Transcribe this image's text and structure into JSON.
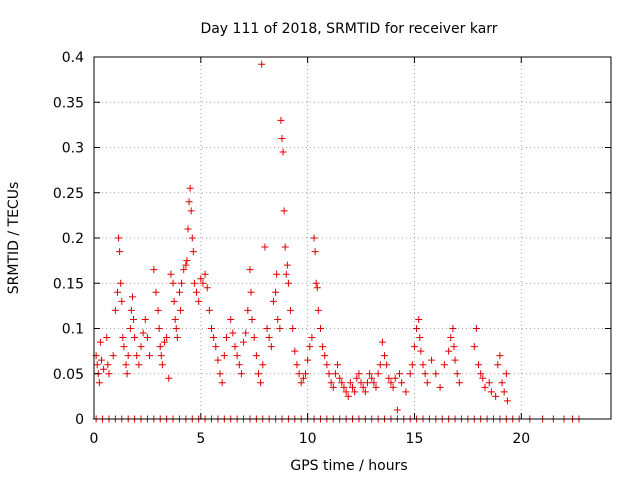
{
  "chart_data": {
    "type": "scatter",
    "title": "Day 111 of 2018, SRMTID for receiver karr",
    "xlabel": "GPS time / hours",
    "ylabel": "SRMTID / TECUs",
    "xlim": [
      0,
      24.2
    ],
    "ylim": [
      0,
      0.4
    ],
    "xticks": [
      0,
      5,
      10,
      15,
      20
    ],
    "xtick_labels": [
      "0",
      "5",
      "10",
      "15",
      "20"
    ],
    "yticks": [
      0,
      0.05,
      0.1,
      0.15,
      0.2,
      0.25,
      0.3,
      0.35,
      0.4
    ],
    "ytick_labels": [
      "0",
      "0.05",
      "0.1",
      "0.15",
      "0.2",
      "0.25",
      "0.3",
      "0.35",
      "0.4"
    ],
    "grid": true,
    "marker": "+",
    "marker_color": "#e00000",
    "series": [
      {
        "name": "SRMTID",
        "points": [
          [
            0.1,
            0.07
          ],
          [
            0.15,
            0.06
          ],
          [
            0.2,
            0.05
          ],
          [
            0.25,
            0.04
          ],
          [
            0.3,
            0.085
          ],
          [
            0.35,
            0.065
          ],
          [
            0.45,
            0.055
          ],
          [
            0.6,
            0.09
          ],
          [
            0.65,
            0.06
          ],
          [
            0.7,
            0.05
          ],
          [
            0.9,
            0.07
          ],
          [
            1.0,
            0.12
          ],
          [
            1.1,
            0.14
          ],
          [
            1.15,
            0.2
          ],
          [
            1.2,
            0.185
          ],
          [
            1.25,
            0.15
          ],
          [
            1.3,
            0.13
          ],
          [
            1.35,
            0.09
          ],
          [
            1.4,
            0.08
          ],
          [
            1.5,
            0.06
          ],
          [
            1.55,
            0.05
          ],
          [
            1.6,
            0.07
          ],
          [
            1.7,
            0.1
          ],
          [
            1.75,
            0.12
          ],
          [
            1.8,
            0.135
          ],
          [
            1.85,
            0.11
          ],
          [
            1.9,
            0.09
          ],
          [
            2.0,
            0.07
          ],
          [
            2.1,
            0.06
          ],
          [
            2.2,
            0.08
          ],
          [
            2.3,
            0.095
          ],
          [
            2.4,
            0.11
          ],
          [
            2.5,
            0.09
          ],
          [
            2.6,
            0.07
          ],
          [
            2.8,
            0.165
          ],
          [
            2.9,
            0.14
          ],
          [
            3.0,
            0.12
          ],
          [
            3.05,
            0.1
          ],
          [
            3.1,
            0.08
          ],
          [
            3.15,
            0.07
          ],
          [
            3.2,
            0.06
          ],
          [
            3.3,
            0.085
          ],
          [
            3.4,
            0.09
          ],
          [
            3.5,
            0.045
          ],
          [
            3.6,
            0.16
          ],
          [
            3.7,
            0.15
          ],
          [
            3.75,
            0.13
          ],
          [
            3.8,
            0.11
          ],
          [
            3.85,
            0.1
          ],
          [
            3.9,
            0.09
          ],
          [
            4.0,
            0.14
          ],
          [
            4.05,
            0.12
          ],
          [
            4.1,
            0.15
          ],
          [
            4.2,
            0.165
          ],
          [
            4.3,
            0.17
          ],
          [
            4.35,
            0.175
          ],
          [
            4.4,
            0.21
          ],
          [
            4.45,
            0.24
          ],
          [
            4.5,
            0.255
          ],
          [
            4.55,
            0.23
          ],
          [
            4.6,
            0.2
          ],
          [
            4.65,
            0.185
          ],
          [
            4.7,
            0.15
          ],
          [
            4.8,
            0.14
          ],
          [
            4.9,
            0.13
          ],
          [
            5.0,
            0.155
          ],
          [
            5.1,
            0.15
          ],
          [
            5.2,
            0.16
          ],
          [
            5.3,
            0.145
          ],
          [
            5.4,
            0.12
          ],
          [
            5.5,
            0.1
          ],
          [
            5.6,
            0.09
          ],
          [
            5.7,
            0.08
          ],
          [
            5.8,
            0.065
          ],
          [
            5.9,
            0.05
          ],
          [
            6.0,
            0.04
          ],
          [
            6.1,
            0.07
          ],
          [
            6.2,
            0.09
          ],
          [
            6.4,
            0.11
          ],
          [
            6.5,
            0.095
          ],
          [
            6.6,
            0.08
          ],
          [
            6.7,
            0.07
          ],
          [
            6.8,
            0.06
          ],
          [
            6.9,
            0.05
          ],
          [
            7.0,
            0.085
          ],
          [
            7.1,
            0.095
          ],
          [
            7.2,
            0.12
          ],
          [
            7.3,
            0.165
          ],
          [
            7.35,
            0.14
          ],
          [
            7.4,
            0.11
          ],
          [
            7.5,
            0.09
          ],
          [
            7.6,
            0.07
          ],
          [
            7.7,
            0.05
          ],
          [
            7.8,
            0.04
          ],
          [
            7.85,
            0.392
          ],
          [
            7.9,
            0.06
          ],
          [
            8.0,
            0.19
          ],
          [
            8.1,
            0.1
          ],
          [
            8.2,
            0.09
          ],
          [
            8.3,
            0.08
          ],
          [
            8.4,
            0.13
          ],
          [
            8.5,
            0.14
          ],
          [
            8.55,
            0.16
          ],
          [
            8.6,
            0.11
          ],
          [
            8.7,
            0.1
          ],
          [
            8.75,
            0.33
          ],
          [
            8.8,
            0.31
          ],
          [
            8.85,
            0.295
          ],
          [
            8.9,
            0.23
          ],
          [
            8.95,
            0.19
          ],
          [
            9.0,
            0.16
          ],
          [
            9.05,
            0.17
          ],
          [
            9.1,
            0.15
          ],
          [
            9.2,
            0.12
          ],
          [
            9.3,
            0.1
          ],
          [
            9.4,
            0.075
          ],
          [
            9.5,
            0.06
          ],
          [
            9.6,
            0.05
          ],
          [
            9.7,
            0.04
          ],
          [
            9.8,
            0.045
          ],
          [
            9.9,
            0.05
          ],
          [
            10.0,
            0.065
          ],
          [
            10.1,
            0.08
          ],
          [
            10.2,
            0.09
          ],
          [
            10.3,
            0.2
          ],
          [
            10.35,
            0.185
          ],
          [
            10.4,
            0.15
          ],
          [
            10.45,
            0.145
          ],
          [
            10.5,
            0.12
          ],
          [
            10.6,
            0.1
          ],
          [
            10.7,
            0.08
          ],
          [
            10.8,
            0.07
          ],
          [
            10.9,
            0.06
          ],
          [
            11.0,
            0.05
          ],
          [
            11.1,
            0.04
          ],
          [
            11.2,
            0.035
          ],
          [
            11.3,
            0.05
          ],
          [
            11.4,
            0.06
          ],
          [
            11.5,
            0.045
          ],
          [
            11.6,
            0.04
          ],
          [
            11.7,
            0.035
          ],
          [
            11.8,
            0.03
          ],
          [
            11.9,
            0.025
          ],
          [
            12.0,
            0.04
          ],
          [
            12.1,
            0.035
          ],
          [
            12.2,
            0.03
          ],
          [
            12.3,
            0.045
          ],
          [
            12.4,
            0.05
          ],
          [
            12.5,
            0.04
          ],
          [
            12.6,
            0.035
          ],
          [
            12.7,
            0.03
          ],
          [
            12.8,
            0.04
          ],
          [
            12.9,
            0.05
          ],
          [
            13.0,
            0.045
          ],
          [
            13.1,
            0.04
          ],
          [
            13.2,
            0.035
          ],
          [
            13.3,
            0.05
          ],
          [
            13.4,
            0.06
          ],
          [
            13.5,
            0.085
          ],
          [
            13.6,
            0.07
          ],
          [
            13.7,
            0.06
          ],
          [
            13.8,
            0.045
          ],
          [
            13.9,
            0.04
          ],
          [
            14.0,
            0.035
          ],
          [
            14.1,
            0.045
          ],
          [
            14.2,
            0.01
          ],
          [
            14.3,
            0.05
          ],
          [
            14.4,
            0.04
          ],
          [
            14.6,
            0.03
          ],
          [
            14.8,
            0.05
          ],
          [
            14.9,
            0.06
          ],
          [
            15.0,
            0.08
          ],
          [
            15.1,
            0.1
          ],
          [
            15.2,
            0.11
          ],
          [
            15.25,
            0.09
          ],
          [
            15.3,
            0.075
          ],
          [
            15.4,
            0.06
          ],
          [
            15.5,
            0.05
          ],
          [
            15.6,
            0.04
          ],
          [
            15.8,
            0.065
          ],
          [
            16.0,
            0.05
          ],
          [
            16.2,
            0.035
          ],
          [
            16.4,
            0.06
          ],
          [
            16.6,
            0.075
          ],
          [
            16.7,
            0.09
          ],
          [
            16.8,
            0.1
          ],
          [
            16.85,
            0.08
          ],
          [
            16.9,
            0.065
          ],
          [
            17.0,
            0.05
          ],
          [
            17.1,
            0.04
          ],
          [
            17.8,
            0.08
          ],
          [
            17.9,
            0.1
          ],
          [
            18.0,
            0.06
          ],
          [
            18.1,
            0.05
          ],
          [
            18.2,
            0.045
          ],
          [
            18.3,
            0.035
          ],
          [
            18.5,
            0.04
          ],
          [
            18.6,
            0.03
          ],
          [
            18.8,
            0.025
          ],
          [
            18.9,
            0.06
          ],
          [
            19.0,
            0.07
          ],
          [
            19.1,
            0.04
          ],
          [
            19.2,
            0.03
          ],
          [
            19.3,
            0.05
          ],
          [
            19.35,
            0.02
          ]
        ],
        "zero_x": [
          0.1,
          0.4,
          0.7,
          1.0,
          1.3,
          1.6,
          1.9,
          2.2,
          2.5,
          2.8,
          3.1,
          3.4,
          3.7,
          4.0,
          4.3,
          4.6,
          4.9,
          5.2,
          5.5,
          5.8,
          6.1,
          6.4,
          6.7,
          7.0,
          7.3,
          7.6,
          7.9,
          8.2,
          8.5,
          8.8,
          9.1,
          9.4,
          9.7,
          10.0,
          10.3,
          10.6,
          10.9,
          11.2,
          11.5,
          11.8,
          12.1,
          12.4,
          12.7,
          13.0,
          13.3,
          13.6,
          13.9,
          14.2,
          14.5,
          14.8,
          15.1,
          15.4,
          15.7,
          16.0,
          16.3,
          16.6,
          16.9,
          17.2,
          17.5,
          17.8,
          18.1,
          18.4,
          18.7,
          19.0,
          19.3,
          19.6,
          19.9,
          20.4,
          21.0,
          21.5,
          22.0,
          22.4,
          22.7
        ]
      }
    ]
  }
}
